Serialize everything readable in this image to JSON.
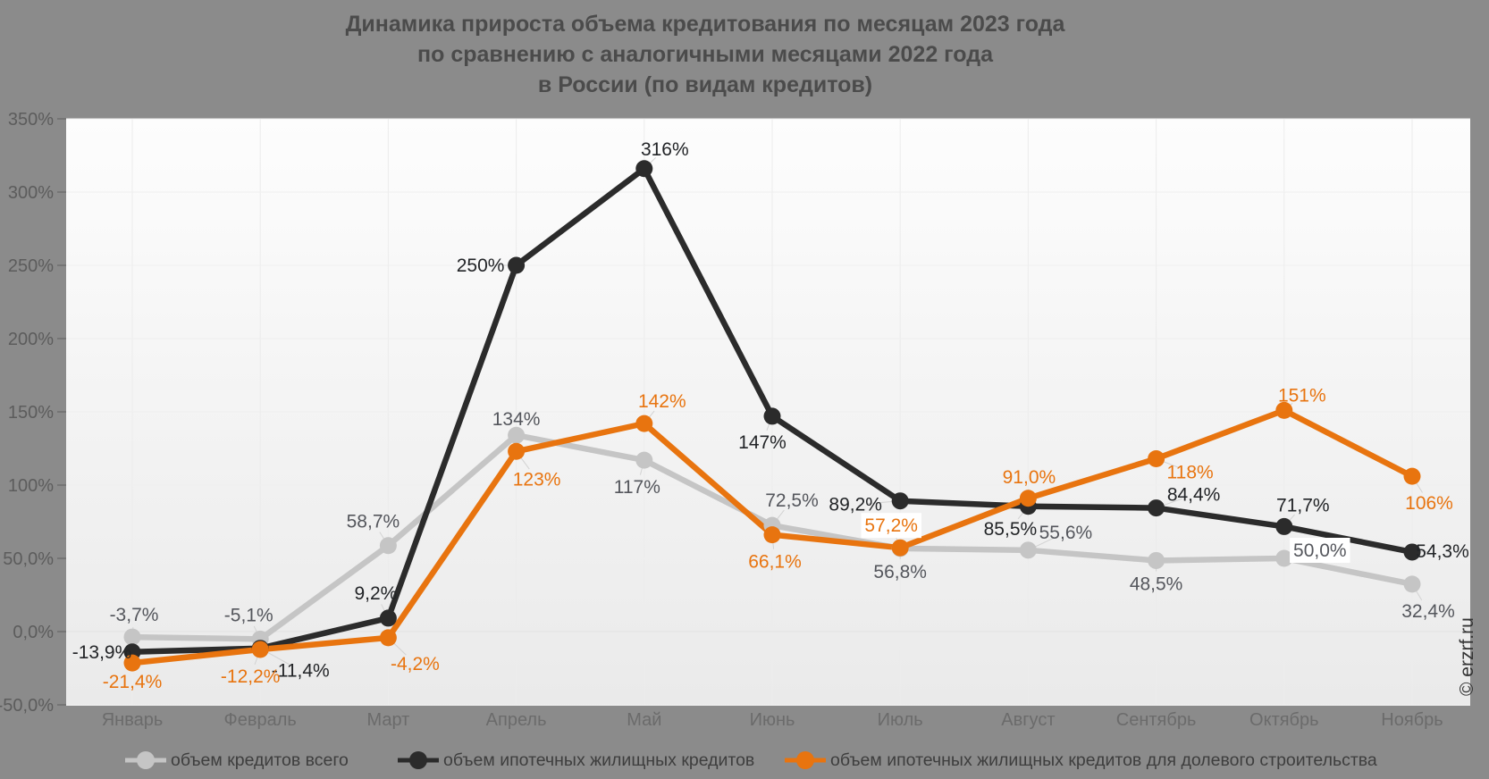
{
  "title": {
    "line1": "Динамика прироста объема кредитования по месяцам 2023 года",
    "line2": "по сравнению с аналогичными месяцами 2022 года",
    "line3": "в России (по видам кредитов)"
  },
  "watermark": "© erzrf.ru",
  "colors": {
    "page_background": "#8b8b8b",
    "plot_background_top": "#fdfdfd",
    "plot_background_bottom": "#eaeaea",
    "gridline": "#efefef",
    "gridline_zero": "#e2e2e2",
    "vertical_gridline": "#ececec",
    "tick_mark": "#757575",
    "y_label": "#5c5c5c",
    "x_label": "#6b6b6b",
    "title_text": "#4b4b4b",
    "leader_line": "#d2d2d2"
  },
  "chart_data": {
    "type": "line",
    "title": "Динамика прироста объема кредитования по месяцам 2023 года по сравнению с аналогичными месяцами 2022 года в России (по видам кредитов)",
    "grid": true,
    "legend_position": "bottom",
    "categories": [
      "Январь",
      "Февраль",
      "Март",
      "Апрель",
      "Май",
      "Июнь",
      "Июль",
      "Август",
      "Сентябрь",
      "Октябрь",
      "Ноябрь"
    ],
    "y_axis": {
      "min": -50,
      "max": 350,
      "tick_values": [
        350,
        300,
        250,
        200,
        150,
        100,
        50,
        0,
        -50
      ],
      "tick_labels": [
        "350%",
        "300%",
        "250%",
        "200%",
        "150%",
        "100%",
        "50,0%",
        "0,0%",
        "-50,0%"
      ]
    },
    "series": [
      {
        "name": "объем кредитов всего",
        "color": "#c5c5c5",
        "label_color": "#54565c",
        "values": [
          -3.7,
          -5.1,
          58.7,
          134,
          117,
          72.5,
          56.8,
          55.6,
          48.5,
          50.0,
          32.4
        ],
        "labels": [
          "-3,7%",
          "-5,1%",
          "58,7%",
          "134%",
          "117%",
          "72,5%",
          "56,8%",
          "55,6%",
          "48,5%",
          "50,0%",
          "32,4%"
        ],
        "label_offsets": [
          [
            2,
            -25
          ],
          [
            -13,
            -27
          ],
          [
            -17,
            -27
          ],
          [
            0,
            -18
          ],
          [
            -8,
            30
          ],
          [
            22,
            -28
          ],
          [
            0,
            26
          ],
          [
            42,
            -20
          ],
          [
            0,
            26
          ],
          [
            40,
            -9
          ],
          [
            18,
            30
          ]
        ],
        "label_bg_indices": [
          9
        ]
      },
      {
        "name": "объем ипотечных жилищных кредитов",
        "color": "#2b2b2b",
        "label_color": "#222427",
        "values": [
          -13.9,
          -11.4,
          9.2,
          250,
          316,
          147,
          89.2,
          85.5,
          84.4,
          71.7,
          54.3
        ],
        "labels": [
          "-13,9%",
          "-11,4%",
          "9,2%",
          "250%",
          "316%",
          "147%",
          "89,2%",
          "85,5%",
          "84,4%",
          "71,7%",
          "54,3%"
        ],
        "label_offsets": [
          [
            -34,
            0
          ],
          [
            45,
            25
          ],
          [
            -14,
            -28
          ],
          [
            -40,
            0
          ],
          [
            23,
            -22
          ],
          [
            -11,
            29
          ],
          [
            -50,
            4
          ],
          [
            -20,
            25
          ],
          [
            42,
            -15
          ],
          [
            21,
            -24
          ],
          [
            34,
            -1
          ]
        ],
        "label_bg_indices": []
      },
      {
        "name": "объем ипотечных жилищных кредитов для долевого строительства",
        "color": "#e8740f",
        "label_color": "#e8740f",
        "values": [
          -21.4,
          -12.2,
          -4.2,
          123,
          142,
          66.1,
          57.2,
          91.0,
          118,
          151,
          106
        ],
        "labels": [
          "-21,4%",
          "-12,2%",
          "-4,2%",
          "123%",
          "142%",
          "66,1%",
          "57,2%",
          "91,0%",
          "118%",
          "151%",
          "106%"
        ],
        "label_offsets": [
          [
            0,
            21
          ],
          [
            -11,
            30
          ],
          [
            30,
            29
          ],
          [
            23,
            31
          ],
          [
            20,
            -25
          ],
          [
            3,
            30
          ],
          [
            -10,
            -25
          ],
          [
            1,
            -24
          ],
          [
            38,
            15
          ],
          [
            20,
            -17
          ],
          [
            19,
            30
          ]
        ],
        "label_bg_indices": [
          6
        ]
      }
    ]
  }
}
